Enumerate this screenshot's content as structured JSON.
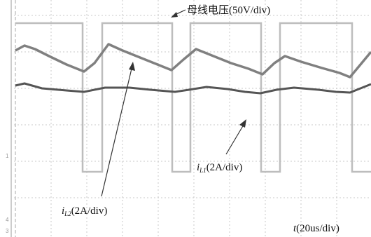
{
  "labels": {
    "bus_voltage": "母线电压(50V/div)",
    "i_l2": {
      "symbol": "i",
      "subscript": "L2",
      "scale": "(2A/div)"
    },
    "i_l1": {
      "symbol": "i",
      "subscript": "L1",
      "scale": "(2A/div)"
    },
    "time": {
      "symbol": "t",
      "scale": "(20us/div)"
    }
  },
  "channel_markers": [
    "1",
    "4",
    "3"
  ]
}
